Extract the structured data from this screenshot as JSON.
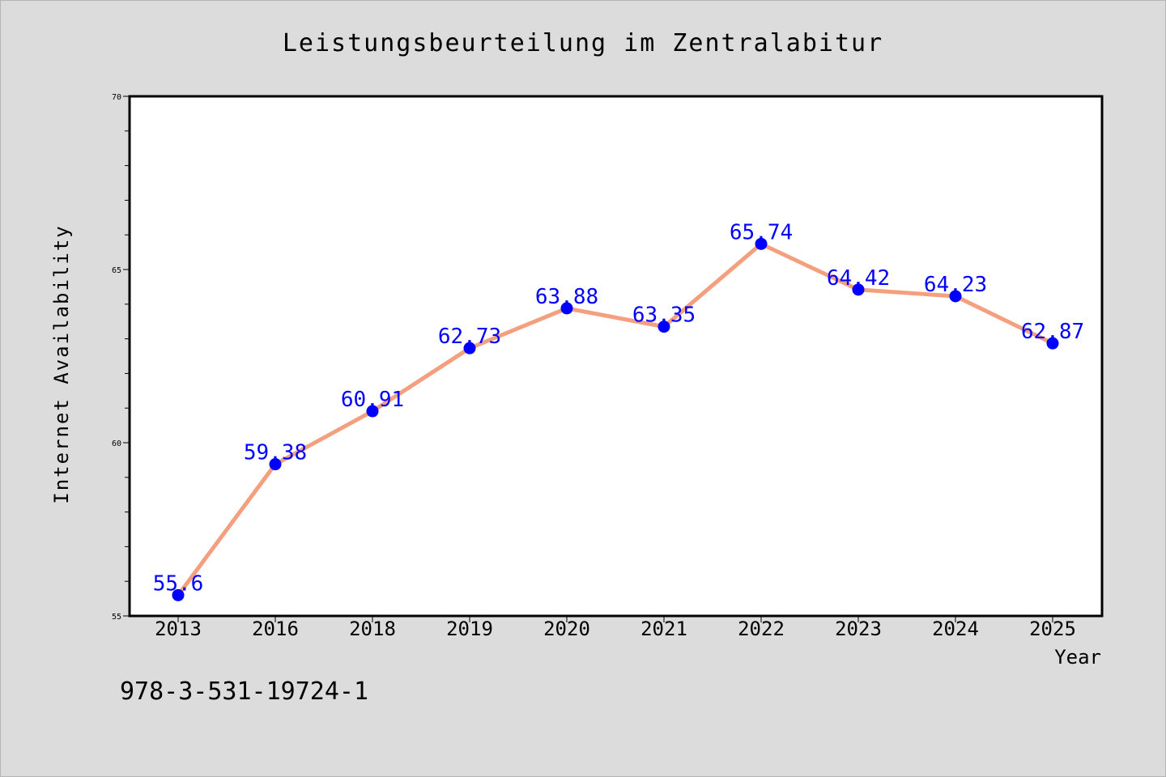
{
  "chart_data": {
    "type": "line",
    "title": "Leistungsbeurteilung im Zentralabitur",
    "xlabel": "Year",
    "ylabel": "Internet Availability",
    "categories": [
      "2013",
      "2016",
      "2018",
      "2019",
      "2020",
      "2021",
      "2022",
      "2023",
      "2024",
      "2025"
    ],
    "series": [
      {
        "values": [
          55.6,
          59.38,
          60.91,
          62.73,
          63.88,
          63.35,
          65.74,
          64.42,
          64.23,
          62.87
        ],
        "line_color": "#f4a07f",
        "marker_color": "#0000ff"
      }
    ],
    "data_labels": [
      "55.6",
      "59.38",
      "60.91",
      "62.73",
      "63.88",
      "63.35",
      "65.74",
      "64.42",
      "64.23",
      "62.87"
    ],
    "ylim": [
      55,
      70
    ],
    "y_ticks": [
      "55",
      "60",
      "65",
      "70"
    ],
    "y_minor_step": 1,
    "grid": false,
    "label_color": "#0000ff"
  },
  "footnote": "978-3-531-19724-1",
  "colors": {
    "background": "#dcdcdc",
    "plot_area": "#ffffff",
    "line": "#f4a07f",
    "marker": "#0000ff"
  }
}
